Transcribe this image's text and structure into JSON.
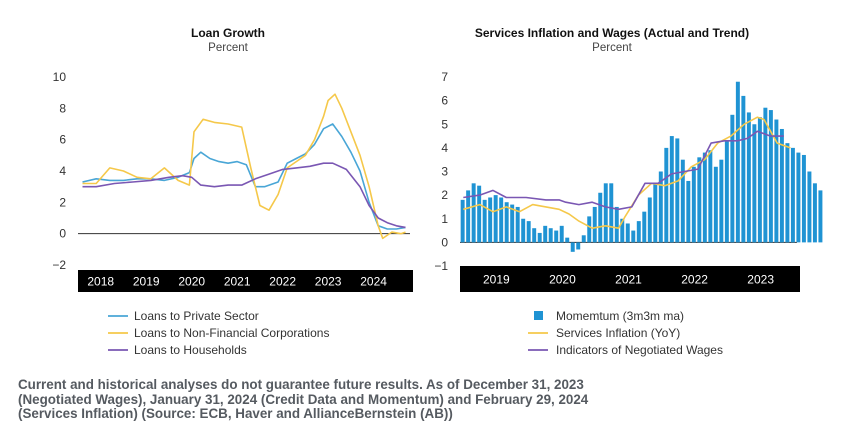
{
  "chart_data": [
    {
      "type": "line",
      "title": "Loan Growth",
      "subtitle": "Percent",
      "ylim": [
        -2,
        10
      ],
      "yticks": [
        -2,
        0,
        2,
        4,
        6,
        8,
        10
      ],
      "xlim": [
        2017.6,
        2024.9
      ],
      "xtick_labels": [
        "2018",
        "2019",
        "2020",
        "2021",
        "2022",
        "2023",
        "2024"
      ],
      "xtick_positions": [
        2018.1,
        2019.1,
        2020.1,
        2021.1,
        2022.1,
        2023.1,
        2024.1
      ],
      "legend_position": "bottom",
      "series": [
        {
          "name": "Loans to Private Sector",
          "color": "#49a6d6",
          "x": [
            2017.7,
            2018.0,
            2018.3,
            2018.6,
            2018.9,
            2019.2,
            2019.5,
            2019.8,
            2020.05,
            2020.15,
            2020.3,
            2020.5,
            2020.7,
            2020.9,
            2021.1,
            2021.3,
            2021.5,
            2021.7,
            2022.0,
            2022.2,
            2022.4,
            2022.6,
            2022.8,
            2023.0,
            2023.2,
            2023.4,
            2023.6,
            2023.8,
            2024.0,
            2024.2,
            2024.4,
            2024.6,
            2024.8
          ],
          "values": [
            3.3,
            3.5,
            3.4,
            3.4,
            3.5,
            3.5,
            3.4,
            3.6,
            3.9,
            4.8,
            5.2,
            4.8,
            4.6,
            4.5,
            4.6,
            4.4,
            3.0,
            3.0,
            3.3,
            4.5,
            4.8,
            5.1,
            5.7,
            6.7,
            7.0,
            6.2,
            5.2,
            4.0,
            2.0,
            0.5,
            0.3,
            0.3,
            0.4
          ]
        },
        {
          "name": "Loans to Non-Financial Corporations",
          "color": "#f5c84a",
          "x": [
            2017.7,
            2018.0,
            2018.3,
            2018.6,
            2018.9,
            2019.2,
            2019.5,
            2019.8,
            2020.05,
            2020.15,
            2020.35,
            2020.6,
            2020.9,
            2021.2,
            2021.4,
            2021.6,
            2021.8,
            2022.0,
            2022.2,
            2022.4,
            2022.6,
            2022.8,
            2023.0,
            2023.1,
            2023.25,
            2023.4,
            2023.6,
            2023.8,
            2024.0,
            2024.2,
            2024.3,
            2024.5,
            2024.7,
            2024.8
          ],
          "values": [
            3.2,
            3.2,
            4.2,
            4.0,
            3.6,
            3.5,
            4.2,
            3.4,
            3.1,
            6.5,
            7.3,
            7.1,
            7.0,
            6.8,
            4.2,
            1.8,
            1.5,
            2.5,
            4.2,
            4.6,
            5.0,
            6.0,
            7.5,
            8.5,
            8.9,
            8.0,
            6.5,
            5.0,
            3.0,
            0.5,
            -0.3,
            0.1,
            0.0,
            0.1
          ]
        },
        {
          "name": "Loans to Households",
          "color": "#7a57b3",
          "x": [
            2017.7,
            2018.0,
            2018.4,
            2018.8,
            2019.2,
            2019.6,
            2019.9,
            2020.1,
            2020.3,
            2020.6,
            2020.9,
            2021.2,
            2021.5,
            2021.8,
            2022.1,
            2022.4,
            2022.7,
            2023.0,
            2023.2,
            2023.5,
            2023.8,
            2024.0,
            2024.2,
            2024.4,
            2024.6,
            2024.8
          ],
          "values": [
            3.0,
            3.0,
            3.2,
            3.3,
            3.4,
            3.6,
            3.7,
            3.6,
            3.1,
            3.0,
            3.1,
            3.1,
            3.5,
            3.8,
            4.1,
            4.2,
            4.3,
            4.5,
            4.5,
            4.1,
            3.0,
            1.8,
            1.0,
            0.7,
            0.5,
            0.4
          ]
        }
      ]
    },
    {
      "type": "bar",
      "title": "Services Inflation and Wages (Actual and Trend)",
      "subtitle": "Percent",
      "ylim": [
        -1,
        7
      ],
      "yticks": [
        -1,
        0,
        1,
        2,
        3,
        4,
        5,
        6,
        7
      ],
      "xlim": [
        2018.5,
        2023.6
      ],
      "xtick_labels": [
        "2019",
        "2020",
        "2021",
        "2022",
        "2023"
      ],
      "xtick_positions": [
        2019.05,
        2020.05,
        2021.05,
        2022.05,
        2023.05
      ],
      "legend_position": "bottom",
      "bar_series": {
        "name": "Momemtum (3m3m ma)",
        "color": "#1f93d3",
        "x_start": 2018.54,
        "step": 0.0833,
        "values": [
          1.8,
          2.2,
          2.5,
          2.4,
          1.8,
          1.9,
          2.0,
          1.9,
          1.7,
          1.6,
          1.5,
          1.0,
          0.9,
          0.6,
          0.4,
          0.7,
          0.6,
          0.5,
          0.7,
          0.2,
          -0.4,
          -0.3,
          0.3,
          1.1,
          1.5,
          2.1,
          2.5,
          2.5,
          1.5,
          1.0,
          0.8,
          0.5,
          0.9,
          1.3,
          1.9,
          2.5,
          3.0,
          4.0,
          4.5,
          4.4,
          3.5,
          2.6,
          3.2,
          3.6,
          3.8,
          3.9,
          3.2,
          3.5,
          4.3,
          5.4,
          6.8,
          6.2,
          5.5,
          5.0,
          5.3,
          5.7,
          5.6,
          5.2,
          4.8,
          4.2,
          4.0,
          3.8,
          3.7,
          3.0,
          2.5,
          2.2
        ]
      },
      "series": [
        {
          "name": "Services Inflation (YoY)",
          "color": "#f5c84a",
          "x": [
            2018.55,
            2018.8,
            2019.0,
            2019.2,
            2019.4,
            2019.6,
            2019.8,
            2020.0,
            2020.15,
            2020.3,
            2020.5,
            2020.7,
            2020.9,
            2021.0,
            2021.2,
            2021.4,
            2021.6,
            2021.8,
            2022.0,
            2022.2,
            2022.4,
            2022.6,
            2022.8,
            2023.0,
            2023.1,
            2023.3,
            2023.5
          ],
          "values": [
            1.4,
            1.6,
            1.3,
            1.5,
            1.3,
            1.6,
            1.5,
            1.4,
            1.2,
            0.9,
            0.6,
            0.7,
            0.6,
            1.1,
            2.0,
            2.5,
            2.4,
            2.6,
            3.2,
            3.5,
            4.2,
            4.5,
            5.0,
            5.3,
            5.2,
            4.2,
            4.0
          ]
        },
        {
          "name": "Indicators of Negotiated Wages",
          "color": "#7a57b3",
          "x": [
            2018.55,
            2018.8,
            2019.0,
            2019.2,
            2019.5,
            2019.8,
            2020.0,
            2020.1,
            2020.3,
            2020.5,
            2020.7,
            2020.9,
            2021.1,
            2021.3,
            2021.5,
            2021.7,
            2021.9,
            2022.1,
            2022.3,
            2022.5,
            2022.7,
            2022.85,
            2023.0,
            2023.2,
            2023.4
          ],
          "values": [
            1.9,
            2.0,
            2.2,
            1.9,
            1.9,
            1.8,
            1.8,
            1.7,
            1.6,
            1.7,
            1.5,
            1.4,
            1.5,
            2.5,
            2.5,
            2.9,
            3.0,
            3.1,
            4.2,
            4.3,
            4.3,
            4.4,
            4.7,
            4.5,
            4.5
          ]
        }
      ]
    }
  ],
  "footnote_lines": [
    "Current and historical analyses do not guarantee future results. As of December 31, 2023",
    "(Negotiated Wages), January 31, 2024 (Credit Data and Momentum) and February 29, 2024",
    "(Services Inflation) (Source: ECB, Haver and AllianceBernstein (AB))"
  ]
}
